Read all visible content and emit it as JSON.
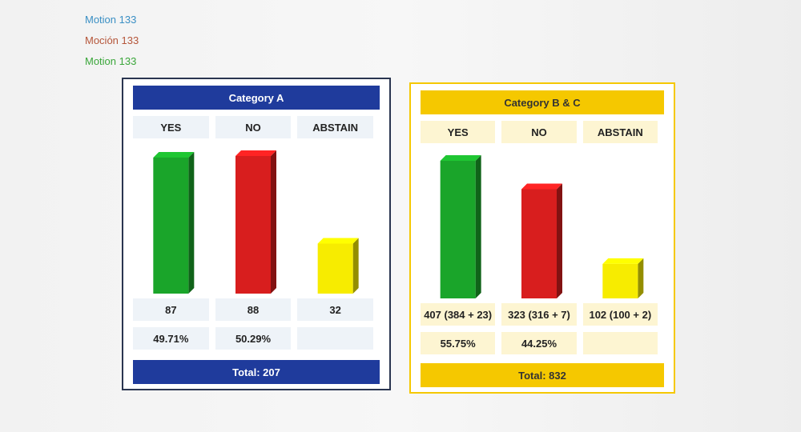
{
  "header": {
    "lines": [
      {
        "text": "Motion 133",
        "color": "#3a8fc4"
      },
      {
        "text": "Moción 133",
        "color": "#b5563a"
      },
      {
        "text": "Motion 133",
        "color": "#3aa63a"
      }
    ]
  },
  "chart_data": [
    {
      "type": "bar",
      "title": "Category A",
      "theme": "#1f3b9c",
      "title_color": "#ffffff",
      "cell_color": "#eef3f8",
      "categories": [
        "YES",
        "NO",
        "ABSTAIN"
      ],
      "values": [
        87,
        88,
        32
      ],
      "colors": [
        "#1aa52a",
        "#d81e1e",
        "#f7ec00"
      ],
      "percent_labels": [
        "49.71%",
        "50.29%",
        null
      ],
      "total_label": "Total: 207"
    },
    {
      "type": "bar",
      "title": "Category B & C",
      "theme": "#f5c800",
      "title_color": "#333333",
      "cell_color": "#fdf5d2",
      "categories": [
        "YES",
        "NO",
        "ABSTAIN"
      ],
      "values": [
        407,
        323,
        102
      ],
      "value_labels": [
        "407 (384 + 23)",
        "323 (316 + 7)",
        "102 (100 + 2)"
      ],
      "colors": [
        "#1aa52a",
        "#d81e1e",
        "#f7ec00"
      ],
      "percent_labels": [
        "55.75%",
        "44.25%",
        null
      ],
      "total_label": "Total: 832"
    }
  ]
}
